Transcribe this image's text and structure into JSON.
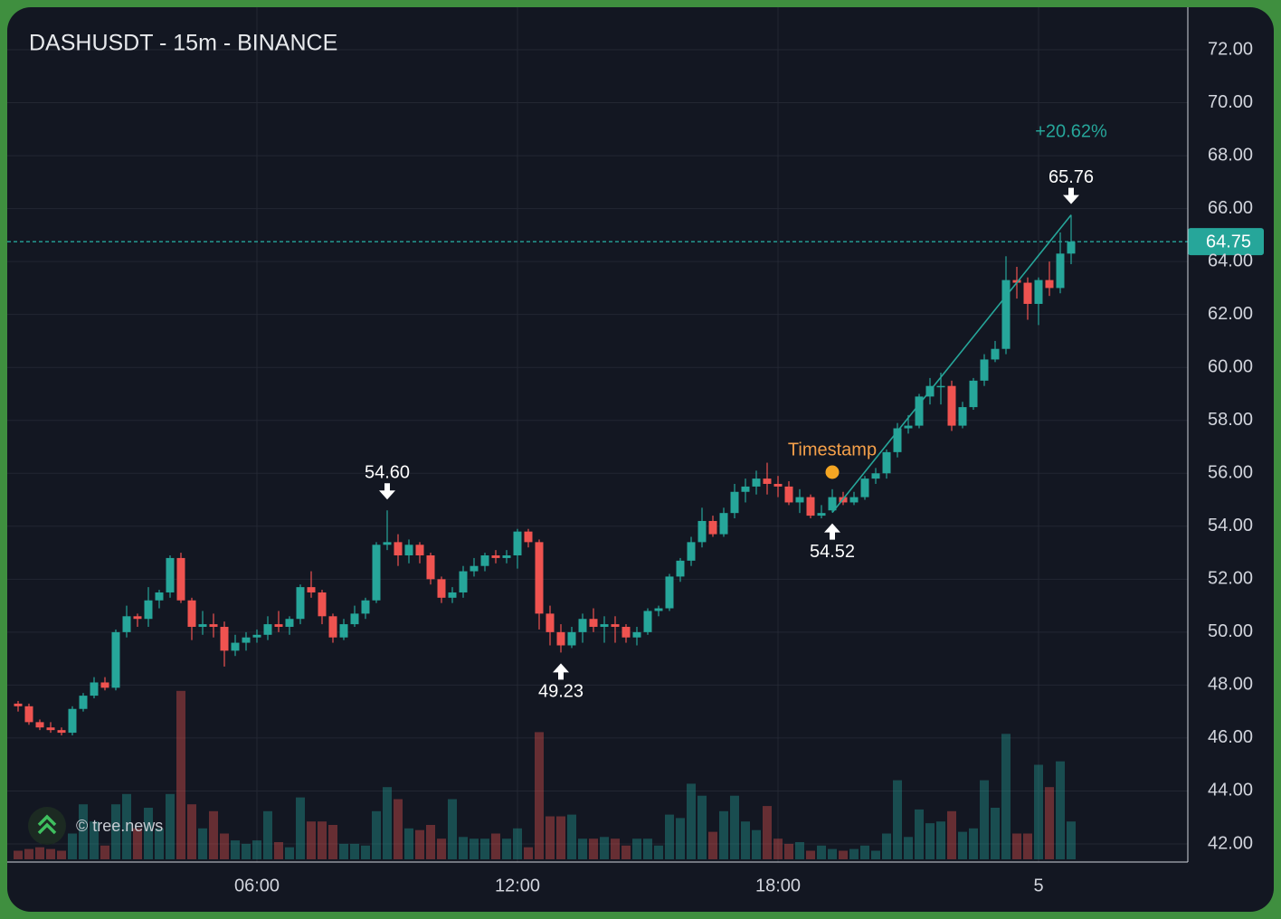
{
  "chart_data": {
    "type": "candlestick",
    "title": "DASHUSDT - 15m - BINANCE",
    "watermark": "© tree.news",
    "ylim": [
      42,
      72
    ],
    "yticks": [
      {
        "value": 42,
        "label": "42.00"
      },
      {
        "value": 44,
        "label": "44.00"
      },
      {
        "value": 46,
        "label": "46.00"
      },
      {
        "value": 48,
        "label": "48.00"
      },
      {
        "value": 50,
        "label": "50.00"
      },
      {
        "value": 52,
        "label": "52.00"
      },
      {
        "value": 54,
        "label": "54.00"
      },
      {
        "value": 56,
        "label": "56.00"
      },
      {
        "value": 58,
        "label": "58.00"
      },
      {
        "value": 60,
        "label": "60.00"
      },
      {
        "value": 62,
        "label": "62.00"
      },
      {
        "value": 64,
        "label": "64.00"
      },
      {
        "value": 66,
        "label": "66.00"
      },
      {
        "value": 68,
        "label": "68.00"
      },
      {
        "value": 70,
        "label": "70.00"
      },
      {
        "value": 72,
        "label": "72.00"
      }
    ],
    "xticks": [
      {
        "value": 22,
        "label": "06:00"
      },
      {
        "value": 46,
        "label": "12:00"
      },
      {
        "value": 70,
        "label": "18:00"
      },
      {
        "value": 94,
        "label": "5"
      }
    ],
    "grid": true,
    "up_color": "#26a69a",
    "down_color": "#ef5350",
    "last_price": {
      "value": 64.75,
      "label": "64.75"
    },
    "change_label": "+20.62%",
    "timestamp_label": "Timestamp",
    "timestamp_candle": 75,
    "annotations": [
      {
        "candle": 34,
        "value": 54.6,
        "label": "54.60",
        "side": "high"
      },
      {
        "candle": 50,
        "value": 49.23,
        "label": "49.23",
        "side": "low"
      },
      {
        "candle": 75,
        "value": 54.52,
        "label": "54.52",
        "side": "low"
      },
      {
        "candle": 97,
        "value": 65.76,
        "label": "65.76",
        "side": "high"
      }
    ],
    "ohlc": [
      [
        47.3,
        47.4,
        47.0,
        47.2
      ],
      [
        47.2,
        47.3,
        46.5,
        46.6
      ],
      [
        46.6,
        46.7,
        46.3,
        46.4
      ],
      [
        46.4,
        46.6,
        46.2,
        46.3
      ],
      [
        46.3,
        46.4,
        46.1,
        46.2
      ],
      [
        46.2,
        47.2,
        46.1,
        47.1
      ],
      [
        47.1,
        47.7,
        47.0,
        47.6
      ],
      [
        47.6,
        48.3,
        47.5,
        48.1
      ],
      [
        48.1,
        48.3,
        47.8,
        47.9
      ],
      [
        47.9,
        50.1,
        47.8,
        50.0
      ],
      [
        50.0,
        51.0,
        49.8,
        50.6
      ],
      [
        50.6,
        50.7,
        50.2,
        50.5
      ],
      [
        50.5,
        51.7,
        50.2,
        51.2
      ],
      [
        51.2,
        51.6,
        50.9,
        51.5
      ],
      [
        51.5,
        52.9,
        51.3,
        52.8
      ],
      [
        52.8,
        53.0,
        51.1,
        51.2
      ],
      [
        51.2,
        51.3,
        49.7,
        50.2
      ],
      [
        50.2,
        50.8,
        49.9,
        50.3
      ],
      [
        50.3,
        50.7,
        49.8,
        50.2
      ],
      [
        50.2,
        50.4,
        48.7,
        49.3
      ],
      [
        49.3,
        49.9,
        49.1,
        49.6
      ],
      [
        49.6,
        50.0,
        49.3,
        49.8
      ],
      [
        49.8,
        50.1,
        49.6,
        49.9
      ],
      [
        49.9,
        50.6,
        49.7,
        50.3
      ],
      [
        50.3,
        50.8,
        50.0,
        50.2
      ],
      [
        50.2,
        50.6,
        49.9,
        50.5
      ],
      [
        50.5,
        51.8,
        50.3,
        51.7
      ],
      [
        51.7,
        52.3,
        51.3,
        51.5
      ],
      [
        51.5,
        51.6,
        50.3,
        50.6
      ],
      [
        50.6,
        50.7,
        49.6,
        49.8
      ],
      [
        49.8,
        50.5,
        49.7,
        50.3
      ],
      [
        50.3,
        51.0,
        50.2,
        50.7
      ],
      [
        50.7,
        51.3,
        50.5,
        51.2
      ],
      [
        51.2,
        53.4,
        51.1,
        53.3
      ],
      [
        53.3,
        54.6,
        53.1,
        53.4
      ],
      [
        53.4,
        53.7,
        52.5,
        52.9
      ],
      [
        52.9,
        53.5,
        52.6,
        53.3
      ],
      [
        53.3,
        53.4,
        52.6,
        52.9
      ],
      [
        52.9,
        53.0,
        51.8,
        52.0
      ],
      [
        52.0,
        52.1,
        51.1,
        51.3
      ],
      [
        51.3,
        51.7,
        51.1,
        51.5
      ],
      [
        51.5,
        52.5,
        51.3,
        52.3
      ],
      [
        52.3,
        52.8,
        52.1,
        52.5
      ],
      [
        52.5,
        53.0,
        52.3,
        52.9
      ],
      [
        52.9,
        53.1,
        52.6,
        52.8
      ],
      [
        52.8,
        53.1,
        52.6,
        52.9
      ],
      [
        52.9,
        53.9,
        52.4,
        53.8
      ],
      [
        53.8,
        53.9,
        53.2,
        53.4
      ],
      [
        53.4,
        53.5,
        50.1,
        50.7
      ],
      [
        50.7,
        51.0,
        49.5,
        50.0
      ],
      [
        50.0,
        50.3,
        49.23,
        49.5
      ],
      [
        49.5,
        50.2,
        49.4,
        50.0
      ],
      [
        50.0,
        50.7,
        49.6,
        50.5
      ],
      [
        50.5,
        50.9,
        50.0,
        50.2
      ],
      [
        50.2,
        50.6,
        49.6,
        50.3
      ],
      [
        50.3,
        50.6,
        49.6,
        50.2
      ],
      [
        50.2,
        50.3,
        49.6,
        49.8
      ],
      [
        49.8,
        50.2,
        49.5,
        50.0
      ],
      [
        50.0,
        50.9,
        49.9,
        50.8
      ],
      [
        50.8,
        51.0,
        50.6,
        50.9
      ],
      [
        50.9,
        52.2,
        50.8,
        52.1
      ],
      [
        52.1,
        52.8,
        51.9,
        52.7
      ],
      [
        52.7,
        53.6,
        52.5,
        53.4
      ],
      [
        53.4,
        54.7,
        53.2,
        54.2
      ],
      [
        54.2,
        54.4,
        53.6,
        53.7
      ],
      [
        53.7,
        54.7,
        53.6,
        54.5
      ],
      [
        54.5,
        55.6,
        54.3,
        55.3
      ],
      [
        55.3,
        55.8,
        54.9,
        55.5
      ],
      [
        55.5,
        56.1,
        55.2,
        55.8
      ],
      [
        55.8,
        56.4,
        55.2,
        55.6
      ],
      [
        55.6,
        55.9,
        55.1,
        55.5
      ],
      [
        55.5,
        55.7,
        54.8,
        54.9
      ],
      [
        54.9,
        55.4,
        54.5,
        55.1
      ],
      [
        55.1,
        55.2,
        54.3,
        54.4
      ],
      [
        54.4,
        54.8,
        54.3,
        54.5
      ],
      [
        54.6,
        55.4,
        54.52,
        55.1
      ],
      [
        55.1,
        55.3,
        54.8,
        54.9
      ],
      [
        54.9,
        55.3,
        54.8,
        55.1
      ],
      [
        55.1,
        55.9,
        55.0,
        55.8
      ],
      [
        55.8,
        56.2,
        55.6,
        56.0
      ],
      [
        56.0,
        56.9,
        55.8,
        56.8
      ],
      [
        56.8,
        57.9,
        56.6,
        57.7
      ],
      [
        57.7,
        58.2,
        57.5,
        57.8
      ],
      [
        57.8,
        59.0,
        57.7,
        58.9
      ],
      [
        58.9,
        59.6,
        58.6,
        59.3
      ],
      [
        59.3,
        59.8,
        58.6,
        59.3
      ],
      [
        59.3,
        59.5,
        57.6,
        57.8
      ],
      [
        57.8,
        58.7,
        57.7,
        58.5
      ],
      [
        58.5,
        59.6,
        58.4,
        59.5
      ],
      [
        59.5,
        60.5,
        59.3,
        60.3
      ],
      [
        60.3,
        61.0,
        60.2,
        60.7
      ],
      [
        60.7,
        64.2,
        60.5,
        63.3
      ],
      [
        63.3,
        63.8,
        62.6,
        63.2
      ],
      [
        63.2,
        63.4,
        61.8,
        62.4
      ],
      [
        62.4,
        63.4,
        61.6,
        63.3
      ],
      [
        63.3,
        64.0,
        62.7,
        63.0
      ],
      [
        63.0,
        65.1,
        62.8,
        64.3
      ],
      [
        64.3,
        65.76,
        63.9,
        64.75
      ]
    ],
    "volume_lim": [
      0,
      100
    ],
    "volume": [
      5,
      6,
      7,
      6,
      5,
      15,
      32,
      22,
      8,
      32,
      38,
      18,
      30,
      18,
      38,
      98,
      32,
      18,
      28,
      15,
      11,
      9,
      11,
      28,
      10,
      7,
      36,
      22,
      22,
      20,
      9,
      9,
      8,
      28,
      42,
      35,
      18,
      17,
      20,
      12,
      35,
      13,
      12,
      12,
      15,
      12,
      18,
      7,
      74,
      25,
      25,
      26,
      12,
      12,
      13,
      12,
      8,
      12,
      12,
      8,
      26,
      24,
      44,
      37,
      16,
      28,
      37,
      22,
      17,
      31,
      12,
      9,
      10,
      5,
      8,
      6,
      5,
      6,
      8,
      5,
      15,
      46,
      13,
      29,
      21,
      22,
      28,
      16,
      18,
      46,
      30,
      73,
      15,
      15,
      55,
      42,
      57,
      22
    ]
  }
}
